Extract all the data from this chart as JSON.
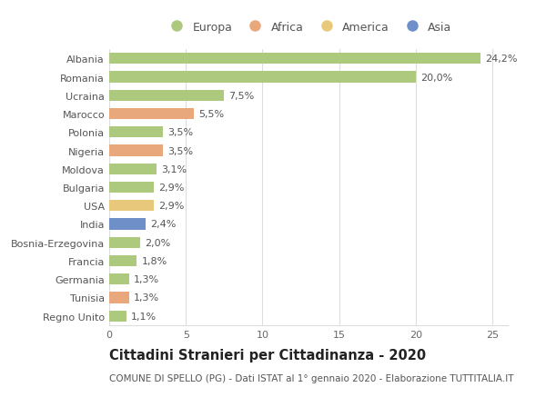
{
  "countries": [
    "Albania",
    "Romania",
    "Ucraina",
    "Marocco",
    "Polonia",
    "Nigeria",
    "Moldova",
    "Bulgaria",
    "USA",
    "India",
    "Bosnia-Erzegovina",
    "Francia",
    "Germania",
    "Tunisia",
    "Regno Unito"
  ],
  "values": [
    24.2,
    20.0,
    7.5,
    5.5,
    3.5,
    3.5,
    3.1,
    2.9,
    2.9,
    2.4,
    2.0,
    1.8,
    1.3,
    1.3,
    1.1
  ],
  "labels": [
    "24,2%",
    "20,0%",
    "7,5%",
    "5,5%",
    "3,5%",
    "3,5%",
    "3,1%",
    "2,9%",
    "2,9%",
    "2,4%",
    "2,0%",
    "1,8%",
    "1,3%",
    "1,3%",
    "1,1%"
  ],
  "continents": [
    "Europa",
    "Europa",
    "Europa",
    "Africa",
    "Europa",
    "Africa",
    "Europa",
    "Europa",
    "America",
    "Asia",
    "Europa",
    "Europa",
    "Europa",
    "Africa",
    "Europa"
  ],
  "colors": {
    "Europa": "#adc97e",
    "Africa": "#e8a87c",
    "America": "#e8c97c",
    "Asia": "#6e8fc7"
  },
  "legend_order": [
    "Europa",
    "Africa",
    "America",
    "Asia"
  ],
  "xlim": [
    0,
    26
  ],
  "xticks": [
    0,
    5,
    10,
    15,
    20,
    25
  ],
  "title": "Cittadini Stranieri per Cittadinanza - 2020",
  "subtitle": "COMUNE DI SPELLO (PG) - Dati ISTAT al 1° gennaio 2020 - Elaborazione TUTTITALIA.IT",
  "bg_color": "#ffffff",
  "grid_color": "#dddddd",
  "bar_height": 0.6,
  "label_fontsize": 8.0,
  "ytick_fontsize": 8.0,
  "xtick_fontsize": 8.0,
  "title_fontsize": 10.5,
  "subtitle_fontsize": 7.5
}
